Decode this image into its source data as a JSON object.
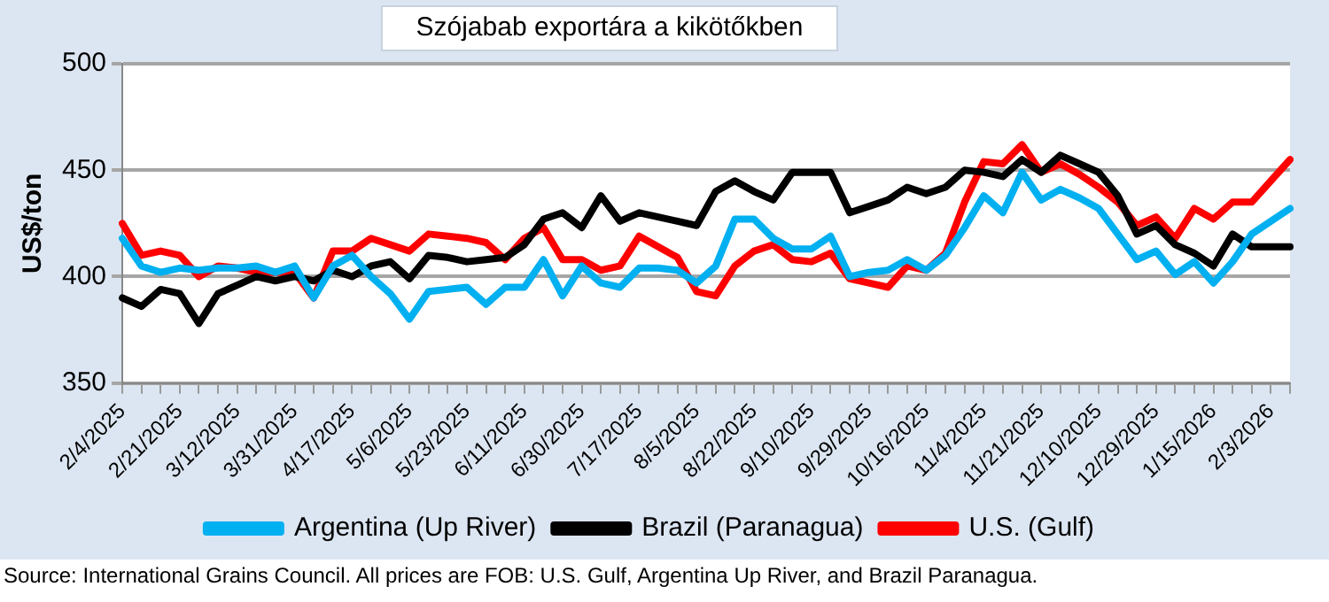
{
  "chart_data": {
    "type": "line",
    "title": "Szójabab exportára a kikötőkben",
    "ylabel": "US$/ton",
    "categories": [
      "2/4/2025",
      null,
      null,
      "2/21/2025",
      null,
      null,
      "3/12/2025",
      null,
      null,
      "3/31/2025",
      null,
      null,
      "4/17/2025",
      null,
      null,
      "5/6/2025",
      null,
      null,
      "5/23/2025",
      null,
      null,
      "6/11/2025",
      null,
      null,
      "6/30/2025",
      null,
      null,
      "7/17/2025",
      null,
      null,
      "8/5/2025",
      null,
      null,
      "8/22/2025",
      null,
      null,
      "9/10/2025",
      null,
      null,
      "9/29/2025",
      null,
      null,
      "10/16/2025",
      null,
      null,
      "11/4/2025",
      null,
      null,
      "11/21/2025",
      null,
      null,
      "12/10/2025",
      null,
      null,
      "12/29/2025",
      null,
      null,
      "1/15/2026",
      null,
      null,
      "2/3/2026",
      null
    ],
    "series": [
      {
        "name": "Argentina (Up River)",
        "color": "#00b0f0",
        "values": [
          418,
          405,
          402,
          404,
          403,
          404,
          404,
          405,
          402,
          405,
          390,
          405,
          410,
          400,
          392,
          380,
          393,
          394,
          395,
          387,
          395,
          395,
          408,
          391,
          405,
          397,
          395,
          404,
          404,
          403,
          397,
          405,
          427,
          427,
          418,
          413,
          413,
          419,
          400,
          402,
          403,
          408,
          403,
          410,
          423,
          438,
          430,
          449,
          436,
          441,
          437,
          432,
          420,
          408,
          412,
          401,
          407,
          397,
          407,
          420,
          426,
          432
        ]
      },
      {
        "name": "Brazil (Paranagua)",
        "color": "#000000",
        "values": [
          390,
          386,
          394,
          392,
          378,
          392,
          396,
          400,
          398,
          400,
          398,
          403,
          400,
          405,
          407,
          399,
          410,
          409,
          407,
          408,
          409,
          415,
          427,
          430,
          423,
          438,
          426,
          430,
          428,
          426,
          424,
          440,
          445,
          440,
          436,
          449,
          449,
          449,
          430,
          433,
          436,
          442,
          439,
          442,
          450,
          449,
          447,
          455,
          449,
          457,
          453,
          449,
          438,
          420,
          424,
          415,
          411,
          405,
          420,
          414,
          414,
          414
        ]
      },
      {
        "name": "U.S. (Gulf)",
        "color": "#ff0000",
        "values": [
          425,
          410,
          412,
          410,
          400,
          405,
          404,
          402,
          402,
          402,
          390,
          412,
          412,
          418,
          415,
          412,
          420,
          419,
          418,
          416,
          408,
          418,
          423,
          408,
          408,
          403,
          405,
          419,
          414,
          409,
          393,
          391,
          405,
          412,
          415,
          408,
          407,
          411,
          399,
          397,
          395,
          405,
          403,
          411,
          435,
          454,
          453,
          462,
          449,
          453,
          448,
          442,
          435,
          424,
          428,
          418,
          432,
          427,
          435,
          435,
          445,
          455
        ]
      }
    ],
    "ylim": [
      350,
      500
    ],
    "yticks": [
      350,
      400,
      450,
      500
    ],
    "grid": "y",
    "legend": "bottom",
    "marker": "none",
    "line_style": "solid",
    "annotations": [
      "Source: International Grains Council. All prices are FOB: U.S. Gulf, Argentina Up River, and Brazil Paranagua."
    ]
  }
}
